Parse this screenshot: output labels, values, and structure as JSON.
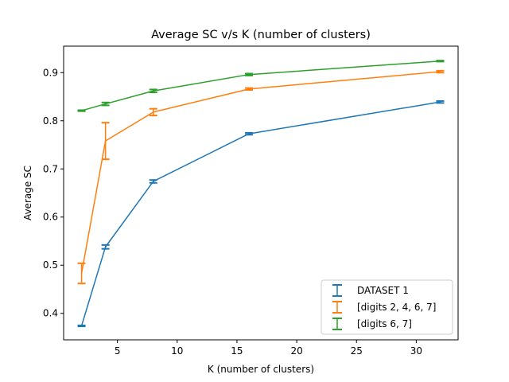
{
  "chart_data": {
    "type": "line",
    "title": "Average SC v/s K (number of clusters)",
    "xlabel": "K (number of clusters)",
    "ylabel": "Average SC",
    "xlim": [
      0.5,
      33.5
    ],
    "ylim": [
      0.345,
      0.955
    ],
    "xticks": [
      5,
      10,
      15,
      20,
      25,
      30
    ],
    "yticks": [
      0.4,
      0.5,
      0.6,
      0.7,
      0.8,
      0.9
    ],
    "grid": false,
    "legend_position": "lower-right",
    "error_bars": true,
    "series": [
      {
        "name": "DATASET 1",
        "color": "#1f77b4",
        "x": [
          2,
          4,
          8,
          16,
          32
        ],
        "y": [
          0.374,
          0.538,
          0.674,
          0.773,
          0.839
        ],
        "yerr": [
          0.001,
          0.004,
          0.003,
          0.002,
          0.002
        ]
      },
      {
        "name": "[digits 2, 4, 6, 7]",
        "color": "#ff7f0e",
        "x": [
          2,
          4,
          8,
          16,
          32
        ],
        "y": [
          0.483,
          0.758,
          0.818,
          0.866,
          0.902
        ],
        "yerr": [
          0.021,
          0.038,
          0.007,
          0.002,
          0.002
        ]
      },
      {
        "name": "[digits 6, 7]",
        "color": "#2ca02c",
        "x": [
          2,
          4,
          8,
          16,
          32
        ],
        "y": [
          0.821,
          0.835,
          0.862,
          0.896,
          0.924
        ],
        "yerr": [
          0.001,
          0.003,
          0.003,
          0.002,
          0.001
        ]
      }
    ]
  }
}
